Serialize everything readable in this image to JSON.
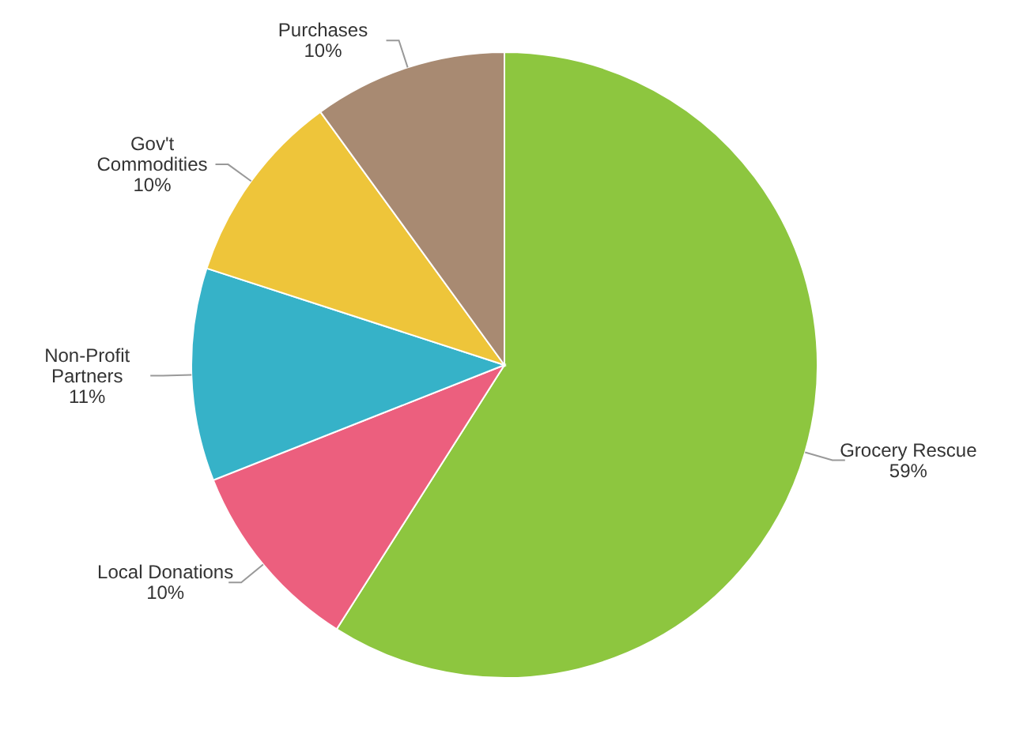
{
  "chart_data": {
    "type": "pie",
    "categories": [
      "Grocery Rescue",
      "Local Donations",
      "Non-Profit\nPartners",
      "Gov't\nCommodities",
      "Purchases"
    ],
    "values": [
      59,
      10,
      11,
      10,
      10
    ],
    "colors": [
      "#8dc63f",
      "#ec5f7e",
      "#36b2c8",
      "#eec53a",
      "#a88a72"
    ],
    "value_labels": [
      "59%",
      "10%",
      "11%",
      "10%",
      "10%"
    ]
  }
}
